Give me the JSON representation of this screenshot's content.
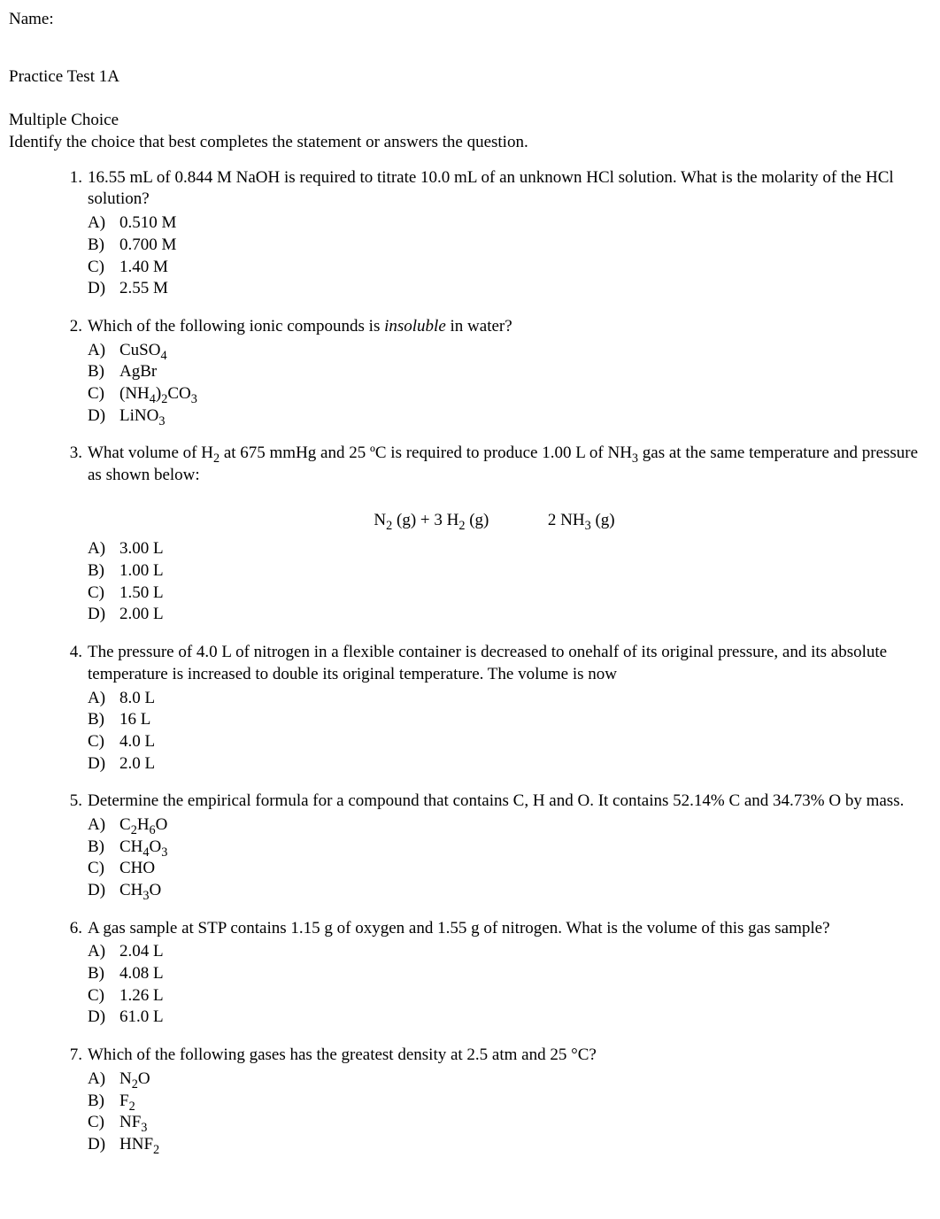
{
  "header": {
    "name_label": "Name:"
  },
  "test_title": "Practice Test 1A",
  "section": {
    "title": "Multiple Choice",
    "instructions": "Identify the choice that best completes the statement or answers the question."
  },
  "questions": [
    {
      "number": "1.",
      "text": "16.55 mL of 0.844 M NaOH is required to titrate 10.0 mL of an unknown HCl solution. What is the molarity of the HCl solution?",
      "choices": [
        {
          "letter": "A)",
          "text": "0.510 M"
        },
        {
          "letter": "B)",
          "text": "0.700 M"
        },
        {
          "letter": "C)",
          "text": "1.40 M"
        },
        {
          "letter": "D)",
          "text": "2.55 M"
        }
      ]
    },
    {
      "number": "2.",
      "text_pre": "Which of the following ionic compounds is ",
      "text_italic": "insoluble",
      "text_post": " in water?",
      "choices": [
        {
          "letter": "A)",
          "html": "CuSO<sub>4</sub>"
        },
        {
          "letter": "B)",
          "html": "AgBr"
        },
        {
          "letter": "C)",
          "html": "(NH<sub>4</sub>)<sub>2</sub>CO<sub>3</sub>"
        },
        {
          "letter": "D)",
          "html": "LiNO<sub>3</sub>"
        }
      ]
    },
    {
      "number": "3.",
      "text_html": "What volume of H<sub>2</sub> at 675 mmHg and 25 ºC is required to produce 1.00 L of NH<sub>3</sub> gas at the same temperature and pressure as shown below:",
      "equation_html": "N<sub>2</sub> (g) + 3 H<sub>2</sub> (g)&nbsp;&nbsp;&nbsp;&nbsp;&nbsp;&nbsp;&nbsp;&nbsp;&nbsp;&nbsp;&nbsp;&nbsp;&nbsp; 2 NH<sub>3</sub> (g)",
      "choices": [
        {
          "letter": "A)",
          "text": "3.00 L"
        },
        {
          "letter": "B)",
          "text": "1.00 L"
        },
        {
          "letter": "C)",
          "text": "1.50 L"
        },
        {
          "letter": "D)",
          "text": "2.00 L"
        }
      ]
    },
    {
      "number": "4.",
      "text": "The pressure of 4.0 L of nitrogen in a flexible container is decreased to onehalf of its original pressure, and its absolute temperature is increased to double its original temperature. The volume is now",
      "choices": [
        {
          "letter": "A)",
          "text": "8.0 L"
        },
        {
          "letter": "B)",
          "text": "16 L"
        },
        {
          "letter": "C)",
          "text": "4.0 L"
        },
        {
          "letter": "D)",
          "text": "2.0 L"
        }
      ]
    },
    {
      "number": "5.",
      "text": "Determine the empirical formula for a compound that contains C, H and O. It contains 52.14% C and 34.73% O by mass.",
      "choices": [
        {
          "letter": "A)",
          "html": "C<sub>2</sub>H<sub>6</sub>O"
        },
        {
          "letter": "B)",
          "html": "CH<sub>4</sub>O<sub>3</sub>"
        },
        {
          "letter": "C)",
          "html": "CHO"
        },
        {
          "letter": "D)",
          "html": "CH<sub>3</sub>O"
        }
      ]
    },
    {
      "number": "6.",
      "text": "A gas sample at STP contains 1.15 g of oxygen and 1.55 g of nitrogen. What is the volume of this gas sample?",
      "choices": [
        {
          "letter": "A)",
          "text": "2.04 L"
        },
        {
          "letter": "B)",
          "text": "4.08 L"
        },
        {
          "letter": "C)",
          "text": "1.26 L"
        },
        {
          "letter": "D)",
          "text": "61.0 L"
        }
      ]
    },
    {
      "number": "7.",
      "text": "Which of the following gases has the greatest density at 2.5 atm and 25 °C?",
      "choices": [
        {
          "letter": "A)",
          "html": "N<sub>2</sub>O"
        },
        {
          "letter": "B)",
          "html": "F<sub>2</sub>"
        },
        {
          "letter": "C)",
          "html": "NF<sub>3</sub>"
        },
        {
          "letter": "D)",
          "html": "HNF<sub>2</sub>"
        }
      ]
    }
  ]
}
